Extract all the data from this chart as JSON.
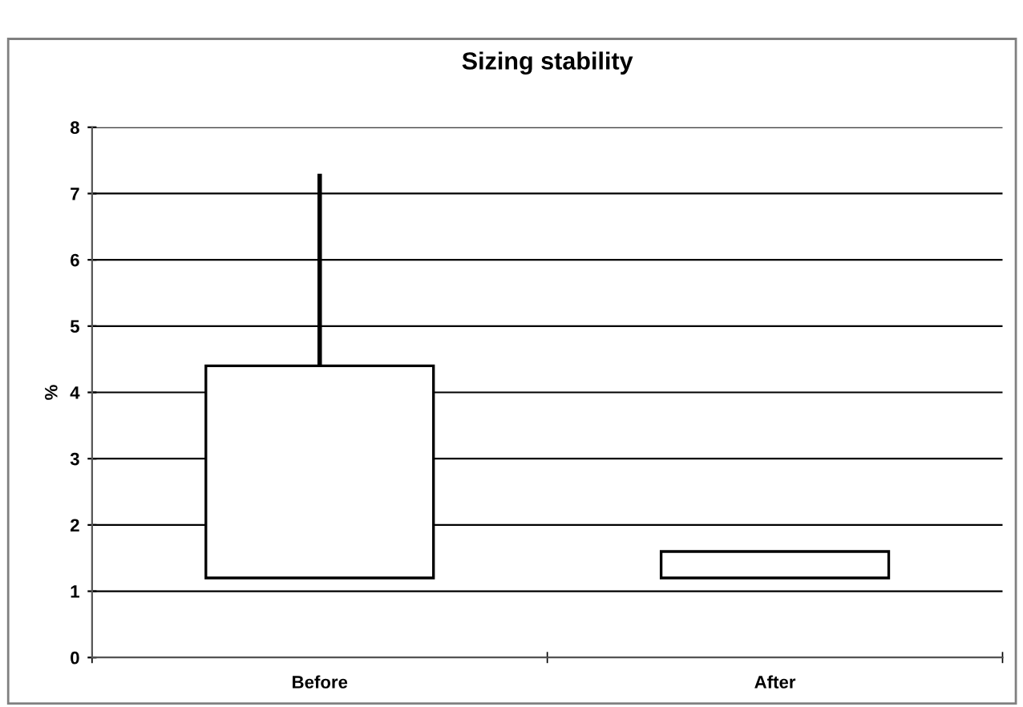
{
  "chart_data": {
    "type": "bar",
    "title": "Sizing stability",
    "ylabel": "%",
    "categories": [
      "Before",
      "After"
    ],
    "base": [
      1.2,
      1.2
    ],
    "values": [
      3.2,
      0.4
    ],
    "errors": [
      [
        4.4,
        7.3
      ],
      null
    ],
    "color": "#ffffff",
    "ylim": [
      0,
      8
    ],
    "yticks": [
      0,
      1,
      2,
      3,
      4,
      5,
      6,
      7,
      8
    ],
    "grid": "y",
    "legend": false
  }
}
